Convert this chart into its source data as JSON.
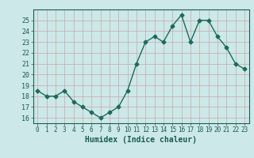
{
  "x": [
    0,
    1,
    2,
    3,
    4,
    5,
    6,
    7,
    8,
    9,
    10,
    11,
    12,
    13,
    14,
    15,
    16,
    17,
    18,
    19,
    20,
    21,
    22,
    23
  ],
  "y": [
    18.5,
    18.0,
    18.0,
    18.5,
    17.5,
    17.0,
    16.5,
    16.0,
    16.5,
    17.0,
    18.5,
    21.0,
    23.0,
    23.5,
    23.0,
    24.5,
    25.5,
    23.0,
    25.0,
    25.0,
    23.5,
    22.5,
    21.0,
    20.5
  ],
  "xlabel": "Humidex (Indice chaleur)",
  "xlim": [
    -0.5,
    23.5
  ],
  "ylim": [
    15.5,
    26.0
  ],
  "yticks": [
    16,
    17,
    18,
    19,
    20,
    21,
    22,
    23,
    24,
    25
  ],
  "xticks": [
    0,
    1,
    2,
    3,
    4,
    5,
    6,
    7,
    8,
    9,
    10,
    11,
    12,
    13,
    14,
    15,
    16,
    17,
    18,
    19,
    20,
    21,
    22,
    23
  ],
  "xtick_labels": [
    "0",
    "1",
    "2",
    "3",
    "4",
    "5",
    "6",
    "7",
    "8",
    "9",
    "10",
    "11",
    "12",
    "13",
    "14",
    "15",
    "16",
    "17",
    "18",
    "19",
    "20",
    "21",
    "22",
    "23"
  ],
  "line_color": "#1a6b5a",
  "marker": "D",
  "bg_color": "#cce8e8",
  "grid_color": "#c8a8a8",
  "text_color": "#1a5c50",
  "marker_size": 2.5,
  "line_width": 1.0
}
